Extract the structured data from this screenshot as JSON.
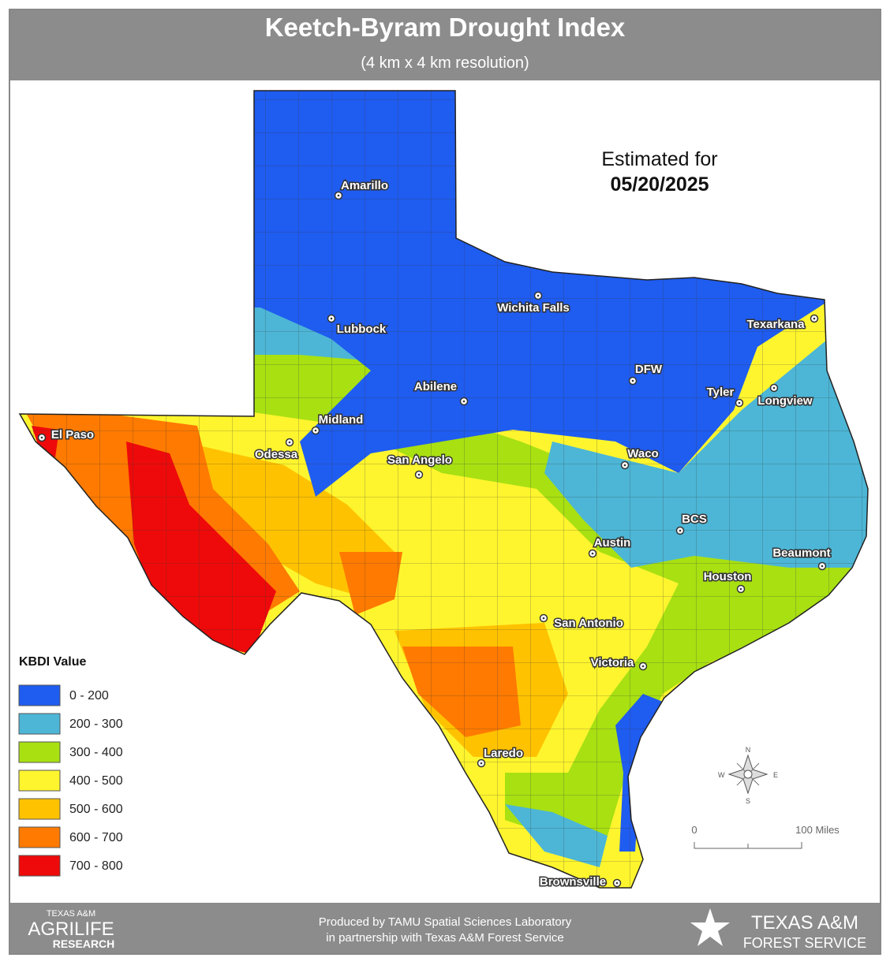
{
  "header": {
    "title": "Keetch-Byram Drought Index",
    "subtitle": "(4 km x 4 km resolution)"
  },
  "date": {
    "label": "Estimated for",
    "value": "05/20/2025"
  },
  "legend": {
    "title": "KBDI Value",
    "items": [
      {
        "label": "0 - 200",
        "color": "#1f5cf0"
      },
      {
        "label": "200 - 300",
        "color": "#4db6d6"
      },
      {
        "label": "300 - 400",
        "color": "#a8e012"
      },
      {
        "label": "400 - 500",
        "color": "#fff52e"
      },
      {
        "label": "500 - 600",
        "color": "#ffc200"
      },
      {
        "label": "600 - 700",
        "color": "#ff7a00"
      },
      {
        "label": "700 - 800",
        "color": "#ee0a0a"
      }
    ]
  },
  "cities": [
    {
      "name": "Amarillo"
    },
    {
      "name": "Lubbock"
    },
    {
      "name": "Wichita Falls"
    },
    {
      "name": "Texarkana"
    },
    {
      "name": "Abilene"
    },
    {
      "name": "DFW"
    },
    {
      "name": "Tyler"
    },
    {
      "name": "Longview"
    },
    {
      "name": "Midland"
    },
    {
      "name": "Odessa"
    },
    {
      "name": "El Paso"
    },
    {
      "name": "San Angelo"
    },
    {
      "name": "Waco"
    },
    {
      "name": "BCS"
    },
    {
      "name": "Austin"
    },
    {
      "name": "Beaumont"
    },
    {
      "name": "Houston"
    },
    {
      "name": "San Antonio"
    },
    {
      "name": "Victoria"
    },
    {
      "name": "Laredo"
    },
    {
      "name": "Brownsville"
    }
  ],
  "scale": {
    "start": "0",
    "end": "100 Miles"
  },
  "compass": {
    "n": "N",
    "e": "E",
    "s": "S",
    "w": "W"
  },
  "footer": {
    "left": [
      "TEXAS A&M",
      "AGRILIFE",
      "RESEARCH"
    ],
    "credit": [
      "Produced by TAMU Spatial Sciences Laboratory",
      "in partnership with Texas A&M Forest Service"
    ],
    "right": [
      "TEXAS A&M",
      "FOREST SERVICE"
    ]
  }
}
